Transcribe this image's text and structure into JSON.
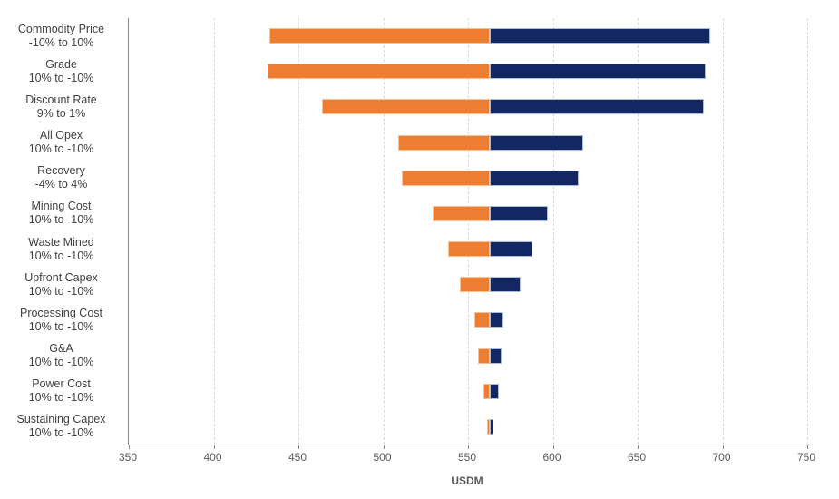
{
  "chart_data": {
    "type": "bar",
    "subtype": "tornado",
    "orientation": "horizontal",
    "xlabel": "USDM",
    "xlim": [
      350,
      750
    ],
    "x_ticks": [
      350,
      400,
      450,
      500,
      550,
      600,
      650,
      700,
      750
    ],
    "base_value": 563,
    "grid": "vertical-dashed",
    "series": [
      {
        "name": "low",
        "color": "#ED7D31"
      },
      {
        "name": "high",
        "color": "#132863"
      }
    ],
    "categories": [
      {
        "name": "Commodity Price",
        "range": "-10% to 10%",
        "low": 433,
        "high": 693
      },
      {
        "name": "Grade",
        "range": "10% to -10%",
        "low": 432,
        "high": 690
      },
      {
        "name": "Discount Rate",
        "range": "9% to 1%",
        "low": 464,
        "high": 689
      },
      {
        "name": "All Opex",
        "range": "10% to -10%",
        "low": 509,
        "high": 618
      },
      {
        "name": "Recovery",
        "range": "-4% to 4%",
        "low": 511,
        "high": 615
      },
      {
        "name": "Mining Cost",
        "range": "10% to -10%",
        "low": 529,
        "high": 597
      },
      {
        "name": "Waste Mined",
        "range": "10% to -10%",
        "low": 538,
        "high": 588
      },
      {
        "name": "Upfront Capex",
        "range": "10% to -10%",
        "low": 545,
        "high": 581
      },
      {
        "name": "Processing Cost",
        "range": "10% to -10%",
        "low": 554,
        "high": 571
      },
      {
        "name": "G&A",
        "range": "10% to -10%",
        "low": 556,
        "high": 570
      },
      {
        "name": "Power Cost",
        "range": "10% to -10%",
        "low": 559,
        "high": 568
      },
      {
        "name": "Sustaining Capex",
        "range": "10% to -10%",
        "low": 561,
        "high": 565
      }
    ],
    "colors": {
      "bar_low": "#ED7D31",
      "bar_high": "#132863",
      "gridline": "#d9d9d9",
      "axis_line": "#8a8a8a",
      "category_text": "#404040",
      "tick_text": "#595959"
    }
  }
}
